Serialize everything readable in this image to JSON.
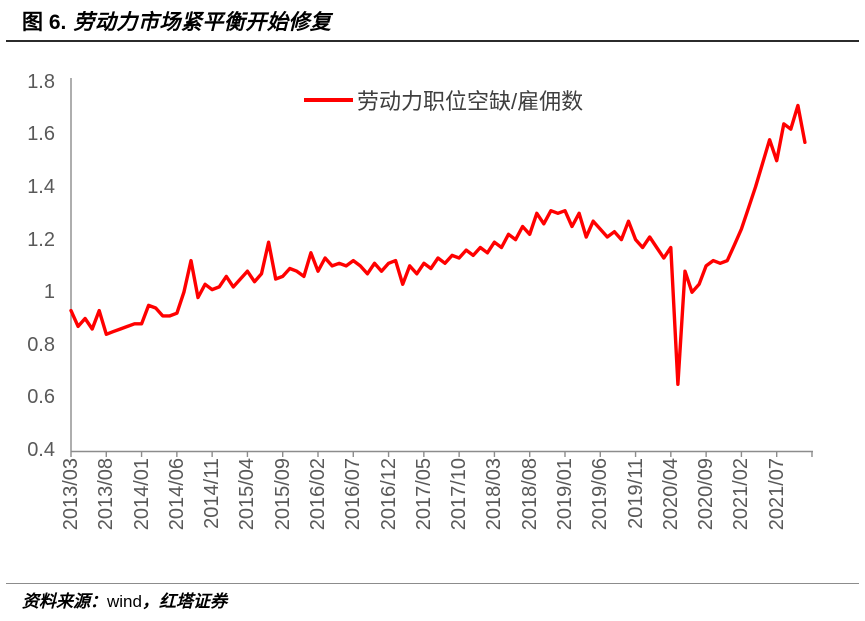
{
  "header": {
    "figure_label": "图 6.",
    "title": "劳动力市场紧平衡开始修复"
  },
  "footer": {
    "prefix": "资料来源：",
    "vendor": "wind",
    "suffix": "，红塔证券"
  },
  "chart_data": {
    "type": "line",
    "title": "图 6. 劳动力市场紧平衡开始修复",
    "legend": [
      "劳动力职位空缺/雇佣数"
    ],
    "legend_position": "top-center",
    "grid": false,
    "line_color": "#ff0000",
    "axis_color": "#8c8c8c",
    "tick_label_color": "#595959",
    "ylim": [
      0.4,
      1.8
    ],
    "ytick_labels": [
      "1.8",
      "1.6",
      "1.4",
      "1.2",
      "1",
      "0.8",
      "0.6",
      "0.4"
    ],
    "x_start": "2013/03",
    "x_frequency": "monthly",
    "x_tick_interval_months": 5,
    "x_tick_labels": [
      "2013/03",
      "2013/08",
      "2014/01",
      "2014/06",
      "2014/11",
      "2015/04",
      "2015/09",
      "2016/02",
      "2016/07",
      "2016/12",
      "2017/05",
      "2017/10",
      "2018/03",
      "2018/08",
      "2019/01",
      "2019/06",
      "2019/11",
      "2020/04",
      "2020/09",
      "2021/02",
      "2021/07"
    ],
    "series": [
      {
        "name": "劳动力职位空缺/雇佣数",
        "values": [
          0.93,
          0.87,
          0.9,
          0.86,
          0.93,
          0.84,
          0.85,
          0.86,
          0.87,
          0.88,
          0.88,
          0.95,
          0.94,
          0.91,
          0.91,
          0.92,
          1.0,
          1.12,
          0.98,
          1.03,
          1.01,
          1.02,
          1.06,
          1.02,
          1.05,
          1.08,
          1.04,
          1.07,
          1.19,
          1.05,
          1.06,
          1.09,
          1.08,
          1.06,
          1.15,
          1.08,
          1.13,
          1.1,
          1.11,
          1.1,
          1.12,
          1.1,
          1.07,
          1.11,
          1.08,
          1.11,
          1.12,
          1.03,
          1.1,
          1.07,
          1.11,
          1.09,
          1.13,
          1.11,
          1.14,
          1.13,
          1.16,
          1.14,
          1.17,
          1.15,
          1.19,
          1.17,
          1.22,
          1.2,
          1.25,
          1.22,
          1.3,
          1.26,
          1.31,
          1.3,
          1.31,
          1.25,
          1.3,
          1.21,
          1.27,
          1.24,
          1.21,
          1.23,
          1.2,
          1.27,
          1.2,
          1.17,
          1.21,
          1.17,
          1.13,
          1.17,
          0.65,
          1.08,
          1.0,
          1.03,
          1.1,
          1.12,
          1.11,
          1.12,
          1.18,
          1.24,
          1.32,
          1.4,
          1.49,
          1.58,
          1.5,
          1.64,
          1.62,
          1.71,
          1.57
        ]
      }
    ]
  }
}
